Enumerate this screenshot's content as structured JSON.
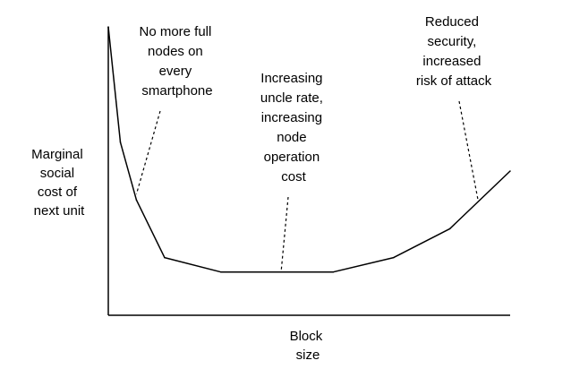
{
  "chart_data": {
    "type": "line",
    "title": "",
    "xlabel": "Block size",
    "ylabel": "Marginal social cost of next unit",
    "xlabel_lines": [
      "Block",
      "size"
    ],
    "ylabel_lines": [
      "Marginal",
      "social",
      "cost of",
      "next unit"
    ],
    "x_ticks": "none",
    "y_ticks": "none",
    "grid": false,
    "legend": "none",
    "xlim": [
      0,
      100
    ],
    "ylim": [
      0,
      100
    ],
    "series": [
      {
        "x": [
          0,
          3,
          7,
          14,
          28,
          42,
          56,
          71,
          85,
          100
        ],
        "y": [
          100,
          60,
          40,
          20,
          15,
          15,
          15,
          20,
          30,
          50
        ],
        "color": "#000000"
      }
    ],
    "annotations": [
      {
        "id": "full-nodes",
        "lines": [
          "No more full",
          "nodes on",
          "every",
          "smartphone"
        ],
        "target": {
          "x": 7,
          "y": 42
        }
      },
      {
        "id": "uncle-rate",
        "lines": [
          "Increasing",
          "uncle rate,",
          "increasing",
          "node",
          "operation",
          "cost"
        ],
        "target": {
          "x": 43,
          "y": 15
        }
      },
      {
        "id": "security",
        "lines": [
          "Reduced",
          "security,",
          "increased",
          "risk of attack"
        ],
        "target": {
          "x": 92,
          "y": 40
        }
      }
    ]
  }
}
